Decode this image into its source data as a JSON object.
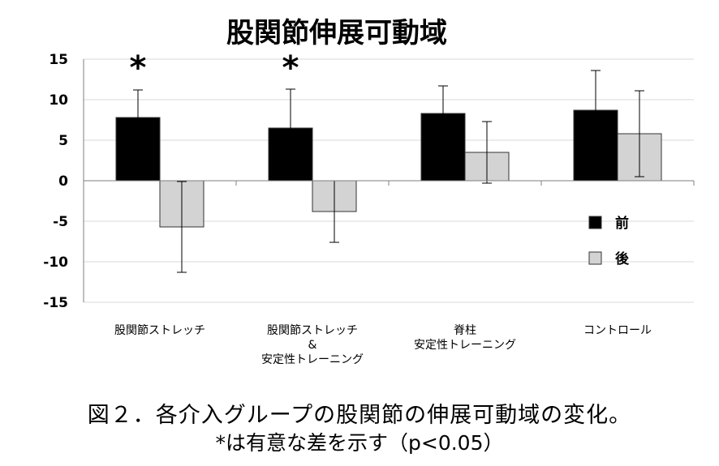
{
  "chart_data": {
    "type": "bar",
    "title": "股関節伸展可動域",
    "categories": [
      [
        "股関節ストレッチ"
      ],
      [
        "股関節ストレッチ",
        "&",
        "安定性トレーニング"
      ],
      [
        "脊柱",
        "安定性トレーニング"
      ],
      [
        "コントロール"
      ]
    ],
    "series": [
      {
        "name": "前",
        "color": "#000000",
        "values": [
          7.8,
          6.5,
          8.3,
          8.7
        ],
        "error": [
          3.4,
          4.8,
          3.4,
          4.9
        ]
      },
      {
        "name": "後",
        "color": "#d3d3d3",
        "values": [
          -5.7,
          -3.8,
          3.5,
          5.8
        ],
        "error": [
          5.6,
          3.8,
          3.8,
          5.3
        ]
      }
    ],
    "ylim": [
      -15,
      15
    ],
    "yticks": [
      15,
      10,
      5,
      0,
      -5,
      -10,
      -15
    ],
    "significance": [
      "*",
      "*",
      "",
      ""
    ],
    "grid": true,
    "legend_position": "right"
  },
  "caption": {
    "line1": "図２．各介入グループの股関節の伸展可動域の変化。",
    "line2": "*は有意な差を示す（p<0.05）"
  }
}
